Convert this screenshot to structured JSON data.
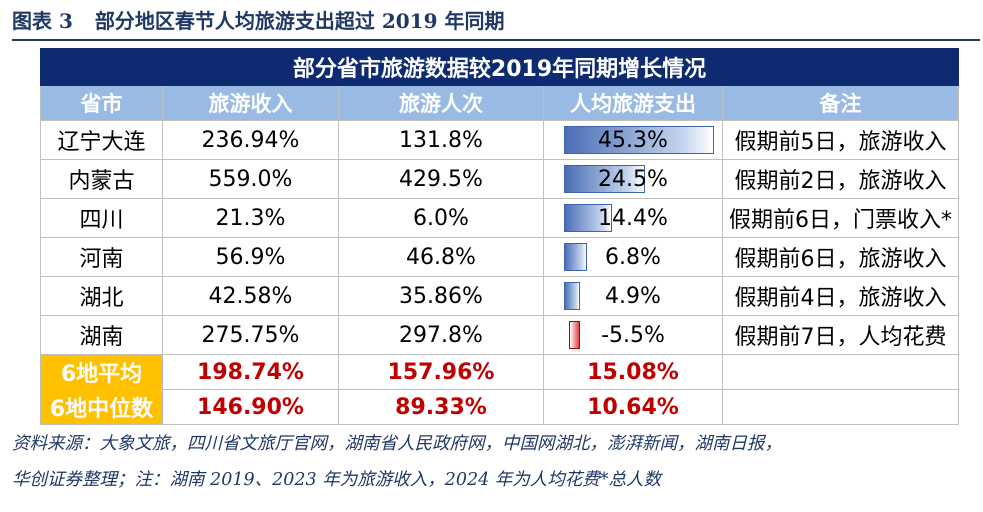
{
  "figure": {
    "label": "图表",
    "number": "3",
    "title": "部分地区春节人均旅游支出超过 2019 年同期"
  },
  "table": {
    "banner": "部分省市旅游数据较2019年同期增长情况",
    "headers": [
      "省市",
      "旅游收入",
      "旅游人次",
      "人均旅游支出",
      "备注"
    ],
    "rows": [
      {
        "region": "辽宁大连",
        "revenue": "236.94%",
        "visits": "131.8%",
        "per_capita": "45.3%",
        "per_capita_value": 45.3,
        "note": "假期前5日，旅游收入"
      },
      {
        "region": "内蒙古",
        "revenue": "559.0%",
        "visits": "429.5%",
        "per_capita": "24.5%",
        "per_capita_value": 24.5,
        "note": "假期前2日，旅游收入"
      },
      {
        "region": "四川",
        "revenue": "21.3%",
        "visits": "6.0%",
        "per_capita": "14.4%",
        "per_capita_value": 14.4,
        "note": "假期前6日，门票收入*"
      },
      {
        "region": "河南",
        "revenue": "56.9%",
        "visits": "46.8%",
        "per_capita": "6.8%",
        "per_capita_value": 6.8,
        "note": "假期前6日，旅游收入"
      },
      {
        "region": "湖北",
        "revenue": "42.58%",
        "visits": "35.86%",
        "per_capita": "4.9%",
        "per_capita_value": 4.9,
        "note": "假期前4日，旅游收入"
      },
      {
        "region": "湖南",
        "revenue": "275.75%",
        "visits": "297.8%",
        "per_capita": "-5.5%",
        "per_capita_value": -5.5,
        "note": "假期前7日，人均花费"
      }
    ],
    "summary": [
      {
        "label": "6地平均",
        "revenue": "198.74%",
        "visits": "157.96%",
        "per_capita": "15.08%"
      },
      {
        "label": "6地中位数",
        "revenue": "146.90%",
        "visits": "89.33%",
        "per_capita": "10.64%"
      }
    ]
  },
  "source": {
    "line1": "资料来源：大象文旅，四川省文旅厅官网，湖南省人民政府网，中国网湖北，澎湃新闻，湖南日报，",
    "line2": "华创证券整理；注：湖南 2019、2023 年为旅游收入，2024 年为人均花费*总人数"
  },
  "colors": {
    "banner_bg": "#0e2a70",
    "header_bg": "#99bbe3",
    "summary_label_bg": "#ffc000",
    "summary_text": "#c00000",
    "bar_positive": "#4a6eb6",
    "bar_negative": "#e04040",
    "title_color": "#1f3864"
  }
}
